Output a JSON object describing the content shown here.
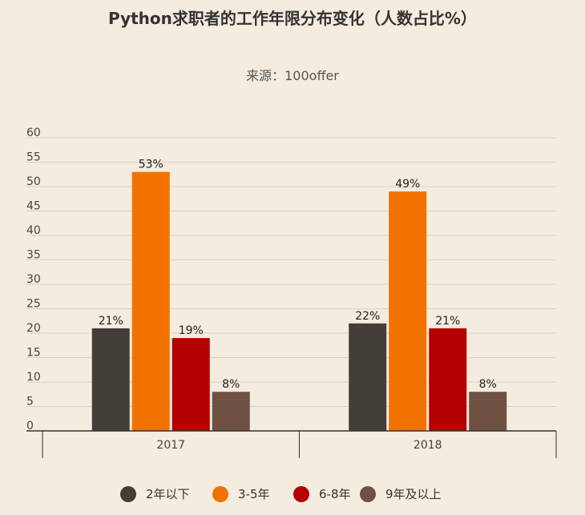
{
  "chart_data": {
    "type": "bar",
    "title": "Python求职者的工作年限分布变化（人数占比%）",
    "subtitle": "来源：100offer",
    "categories": [
      "2017",
      "2018"
    ],
    "series": [
      {
        "name": "2年以下",
        "values": [
          21,
          22
        ],
        "color": "#443e38"
      },
      {
        "name": "3-5年",
        "values": [
          53,
          49
        ],
        "color": "#f27200"
      },
      {
        "name": "6-8年",
        "values": [
          19,
          21
        ],
        "color": "#b50000"
      },
      {
        "name": "9年及以上",
        "values": [
          8,
          8
        ],
        "color": "#6f5144"
      }
    ],
    "value_labels": [
      [
        "21%",
        "22%"
      ],
      [
        "53%",
        "49%"
      ],
      [
        "19%",
        "21%"
      ],
      [
        "8%",
        "8%"
      ]
    ],
    "yticks": [
      "0",
      "5",
      "10",
      "15",
      "20",
      "25",
      "30",
      "35",
      "40",
      "45",
      "50",
      "55",
      "60"
    ],
    "ylim": [
      0,
      60
    ],
    "grid": true,
    "legend_position": "bottom"
  }
}
